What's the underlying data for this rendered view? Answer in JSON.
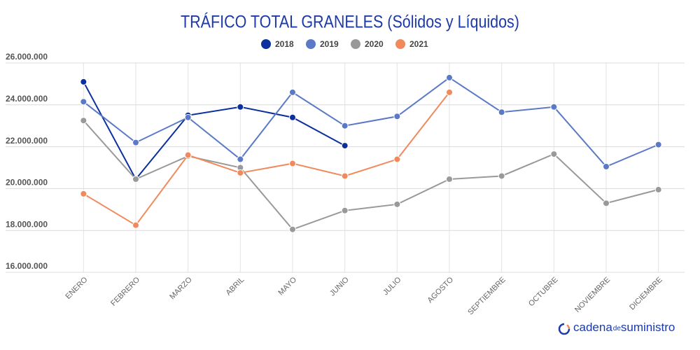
{
  "chart_data": {
    "type": "line",
    "title": "TRÁFICO TOTAL GRANELES (Sólidos y Líquidos)",
    "categories": [
      "ENERO",
      "FEBRERO",
      "MARZO",
      "ABRIL",
      "MAYO",
      "JUNIO",
      "JULIO",
      "AGOSTO",
      "SEPTIEMBRE",
      "OCTUBRE",
      "NOVIEMBRE",
      "DICIEMBRE"
    ],
    "series": [
      {
        "name": "2018",
        "color": "#0a2f9e",
        "values": [
          25100000,
          20450000,
          23500000,
          23900000,
          23400000,
          22050000,
          null,
          null,
          null,
          null,
          null,
          null
        ]
      },
      {
        "name": "2019",
        "color": "#5b79c6",
        "values": [
          24150000,
          22200000,
          23400000,
          21400000,
          24600000,
          23000000,
          23450000,
          25300000,
          23650000,
          23900000,
          21050000,
          22100000
        ]
      },
      {
        "name": "2020",
        "color": "#999999",
        "values": [
          23250000,
          20450000,
          21550000,
          21000000,
          18050000,
          18950000,
          19250000,
          20450000,
          20600000,
          21650000,
          19300000,
          19950000
        ]
      },
      {
        "name": "2021",
        "color": "#f08a5d",
        "values": [
          19750000,
          18250000,
          21600000,
          20750000,
          21200000,
          20600000,
          21400000,
          24600000,
          null,
          null,
          null,
          null
        ]
      }
    ],
    "ylim": [
      16000000,
      26000000
    ],
    "yticks": [
      {
        "value": 16000000,
        "label": "16.000.000"
      },
      {
        "value": 18000000,
        "label": "18.000.000"
      },
      {
        "value": 20000000,
        "label": "20.000.000"
      },
      {
        "value": 22000000,
        "label": "22.000.000"
      },
      {
        "value": 24000000,
        "label": "24.000.000"
      },
      {
        "value": 26000000,
        "label": "26.000.000"
      }
    ],
    "grid": true,
    "legend": "top"
  },
  "logo": {
    "main": "cadena",
    "small": "de",
    "end": "suministro"
  }
}
